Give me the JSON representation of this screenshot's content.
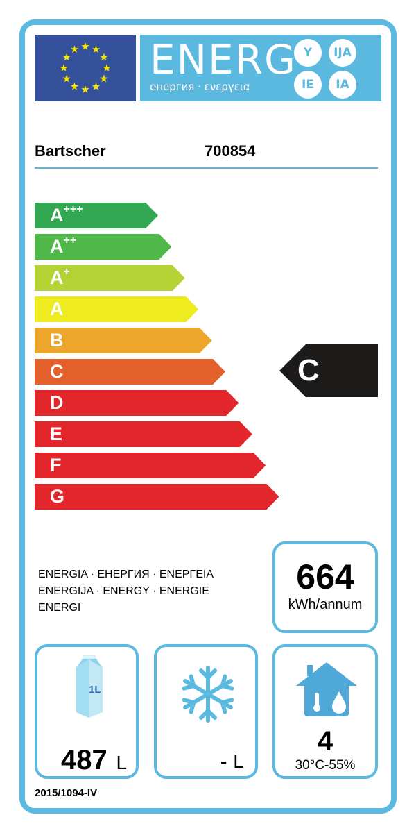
{
  "header": {
    "logo_text": "ENERG",
    "logo_subtitle": "енергия · ενεργεια",
    "suffixes": [
      "Y",
      "IJA",
      "IE",
      "IA"
    ]
  },
  "supplier": {
    "brand": "Bartscher",
    "model": "700854"
  },
  "scale": {
    "classes": [
      {
        "letter": "A",
        "sup": "+++",
        "color": "#33a853"
      },
      {
        "letter": "A",
        "sup": "++",
        "color": "#4fb848"
      },
      {
        "letter": "A",
        "sup": "+",
        "color": "#b5d334"
      },
      {
        "letter": "A",
        "sup": "",
        "color": "#eeeb1e"
      },
      {
        "letter": "B",
        "sup": "",
        "color": "#eba62b"
      },
      {
        "letter": "C",
        "sup": "",
        "color": "#e3602a"
      },
      {
        "letter": "D",
        "sup": "",
        "color": "#e3262b"
      },
      {
        "letter": "E",
        "sup": "",
        "color": "#e3262b"
      },
      {
        "letter": "F",
        "sup": "",
        "color": "#e3262b"
      },
      {
        "letter": "G",
        "sup": "",
        "color": "#e3262b"
      }
    ],
    "rating": "C"
  },
  "energy_words": [
    "ENERGIA · ЕНЕРГИЯ · ΕΝΕΡΓΕΙΑ",
    "ENERGIJA · ENERGY · ENERGIE",
    "ENERGI"
  ],
  "consumption": {
    "value": "664",
    "unit": "kWh/annum"
  },
  "fresh_volume": {
    "value": "487",
    "unit": "L",
    "icon_label": "1L"
  },
  "frozen_volume": {
    "value": "-",
    "unit": "L"
  },
  "climate": {
    "class": "4",
    "range": "30°C-55%"
  },
  "regulation": "2015/1094-IV"
}
